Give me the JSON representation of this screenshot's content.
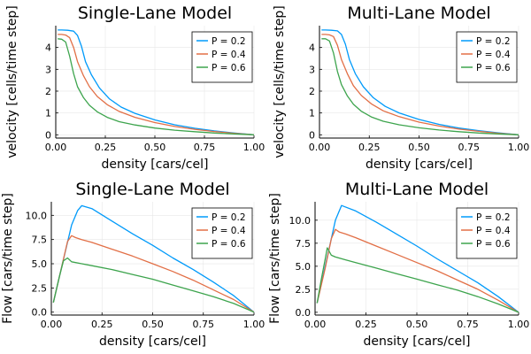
{
  "chart_data": [
    {
      "type": "line",
      "title": "Single-Lane Model",
      "xlabel": "density [cars/cel]",
      "ylabel": "velocity [cells/time step]",
      "xlim": [
        0,
        1
      ],
      "ylim": [
        -0.15,
        5.0
      ],
      "xticks": [
        0,
        0.25,
        0.5,
        0.75,
        1.0
      ],
      "xtick_labels": [
        "0.00",
        "0.25",
        "0.50",
        "0.75",
        "1.00"
      ],
      "yticks": [
        0,
        1,
        2,
        3,
        4
      ],
      "ytick_labels": [
        "0",
        "1",
        "2",
        "3",
        "4"
      ],
      "grid": true,
      "legend_position": "top-right",
      "series": [
        {
          "name": "P = 0.2",
          "color": "#009AFA",
          "x": [
            0.01,
            0.03,
            0.06,
            0.09,
            0.11,
            0.13,
            0.15,
            0.18,
            0.22,
            0.27,
            0.33,
            0.4,
            0.5,
            0.6,
            0.7,
            0.8,
            0.9,
            1.0
          ],
          "y": [
            4.8,
            4.8,
            4.79,
            4.75,
            4.55,
            4.05,
            3.35,
            2.75,
            2.15,
            1.65,
            1.27,
            0.98,
            0.68,
            0.46,
            0.3,
            0.18,
            0.08,
            0.0
          ]
        },
        {
          "name": "P = 0.4",
          "color": "#E26F46",
          "x": [
            0.01,
            0.03,
            0.05,
            0.07,
            0.09,
            0.11,
            0.14,
            0.17,
            0.21,
            0.26,
            0.32,
            0.4,
            0.5,
            0.6,
            0.7,
            0.8,
            0.9,
            1.0
          ],
          "y": [
            4.6,
            4.6,
            4.57,
            4.45,
            4.0,
            3.35,
            2.7,
            2.2,
            1.75,
            1.38,
            1.07,
            0.8,
            0.56,
            0.38,
            0.25,
            0.15,
            0.07,
            0.0
          ]
        },
        {
          "name": "P = 0.6",
          "color": "#3DA44D",
          "x": [
            0.01,
            0.03,
            0.05,
            0.07,
            0.09,
            0.11,
            0.14,
            0.17,
            0.21,
            0.26,
            0.32,
            0.4,
            0.5,
            0.6,
            0.7,
            0.8,
            0.9,
            1.0
          ],
          "y": [
            4.4,
            4.38,
            4.25,
            3.6,
            2.8,
            2.2,
            1.7,
            1.35,
            1.05,
            0.8,
            0.6,
            0.45,
            0.31,
            0.21,
            0.14,
            0.08,
            0.04,
            0.0
          ]
        }
      ]
    },
    {
      "type": "line",
      "title": "Multi-Lane Model",
      "xlabel": "density [cars/cel]",
      "ylabel": "velocity [cells/time step]",
      "xlim": [
        0,
        1
      ],
      "ylim": [
        -0.15,
        5.0
      ],
      "xticks": [
        0,
        0.25,
        0.5,
        0.75,
        1.0
      ],
      "xtick_labels": [
        "0.00",
        "0.25",
        "0.50",
        "0.75",
        "1.00"
      ],
      "yticks": [
        0,
        1,
        2,
        3,
        4
      ],
      "ytick_labels": [
        "0",
        "1",
        "2",
        "3",
        "4"
      ],
      "grid": true,
      "legend_position": "top-right",
      "series": [
        {
          "name": "P = 0.2",
          "color": "#009AFA",
          "x": [
            0.01,
            0.03,
            0.06,
            0.09,
            0.11,
            0.13,
            0.15,
            0.18,
            0.22,
            0.27,
            0.33,
            0.4,
            0.5,
            0.6,
            0.7,
            0.8,
            0.9,
            1.0
          ],
          "y": [
            4.8,
            4.8,
            4.79,
            4.76,
            4.6,
            4.15,
            3.45,
            2.8,
            2.2,
            1.7,
            1.3,
            1.0,
            0.7,
            0.48,
            0.31,
            0.19,
            0.09,
            0.0
          ]
        },
        {
          "name": "P = 0.4",
          "color": "#E26F46",
          "x": [
            0.01,
            0.03,
            0.05,
            0.07,
            0.09,
            0.11,
            0.14,
            0.17,
            0.21,
            0.26,
            0.32,
            0.4,
            0.5,
            0.6,
            0.7,
            0.8,
            0.9,
            1.0
          ],
          "y": [
            4.6,
            4.6,
            4.58,
            4.5,
            4.1,
            3.45,
            2.8,
            2.25,
            1.8,
            1.42,
            1.1,
            0.83,
            0.58,
            0.4,
            0.26,
            0.16,
            0.07,
            0.0
          ]
        },
        {
          "name": "P = 0.6",
          "color": "#3DA44D",
          "x": [
            0.01,
            0.03,
            0.05,
            0.07,
            0.09,
            0.11,
            0.14,
            0.17,
            0.21,
            0.26,
            0.32,
            0.4,
            0.5,
            0.6,
            0.7,
            0.8,
            0.9,
            1.0
          ],
          "y": [
            4.4,
            4.4,
            4.3,
            3.75,
            2.9,
            2.3,
            1.78,
            1.4,
            1.08,
            0.82,
            0.62,
            0.46,
            0.32,
            0.22,
            0.14,
            0.08,
            0.04,
            0.0
          ]
        }
      ]
    },
    {
      "type": "line",
      "title": "Single-Lane Model",
      "xlabel": "density [cars/cel]",
      "ylabel": "Flow [cars/time step]",
      "xlim": [
        0,
        1
      ],
      "ylim": [
        -0.3,
        11.4
      ],
      "xticks": [
        0,
        0.25,
        0.5,
        0.75,
        1.0
      ],
      "xtick_labels": [
        "0.00",
        "0.25",
        "0.50",
        "0.75",
        "1.00"
      ],
      "yticks": [
        0,
        2.5,
        5,
        7.5,
        10
      ],
      "ytick_labels": [
        "0.0",
        "2.5",
        "5.0",
        "7.5",
        "10.0"
      ],
      "grid": true,
      "legend_position": "top-right",
      "series": [
        {
          "name": "P = 0.2",
          "color": "#009AFA",
          "x": [
            0.01,
            0.05,
            0.1,
            0.13,
            0.15,
            0.2,
            0.3,
            0.4,
            0.5,
            0.6,
            0.7,
            0.8,
            0.9,
            1.0
          ],
          "y": [
            1.0,
            4.6,
            9.0,
            10.5,
            11.0,
            10.7,
            9.4,
            8.1,
            6.9,
            5.6,
            4.4,
            3.1,
            1.7,
            0.0
          ]
        },
        {
          "name": "P = 0.4",
          "color": "#E26F46",
          "x": [
            0.01,
            0.05,
            0.08,
            0.1,
            0.12,
            0.15,
            0.2,
            0.3,
            0.4,
            0.5,
            0.6,
            0.7,
            0.8,
            0.9,
            1.0
          ],
          "y": [
            1.0,
            4.6,
            7.3,
            7.9,
            7.7,
            7.5,
            7.2,
            6.5,
            5.8,
            5.0,
            4.2,
            3.3,
            2.3,
            1.3,
            0.0
          ]
        },
        {
          "name": "P = 0.6",
          "color": "#3DA44D",
          "x": [
            0.01,
            0.04,
            0.06,
            0.08,
            0.1,
            0.15,
            0.2,
            0.3,
            0.4,
            0.5,
            0.6,
            0.7,
            0.8,
            0.9,
            1.0
          ],
          "y": [
            1.0,
            3.7,
            5.3,
            5.6,
            5.2,
            5.0,
            4.8,
            4.4,
            3.9,
            3.4,
            2.8,
            2.2,
            1.6,
            0.9,
            0.0
          ]
        }
      ]
    },
    {
      "type": "line",
      "title": "Multi-Lane Model",
      "xlabel": "density [cars/cel]",
      "ylabel": "Flow [cars/time step]",
      "xlim": [
        0,
        1
      ],
      "ylim": [
        -0.3,
        12.0
      ],
      "xticks": [
        0,
        0.25,
        0.5,
        0.75,
        1.0
      ],
      "xtick_labels": [
        "0.00",
        "0.25",
        "0.50",
        "0.75",
        "1.00"
      ],
      "yticks": [
        0,
        2.5,
        5,
        7.5,
        10
      ],
      "ytick_labels": [
        "0.0",
        "2.5",
        "5.0",
        "7.5",
        "10.0"
      ],
      "grid": true,
      "legend_position": "top-right",
      "series": [
        {
          "name": "P = 0.2",
          "color": "#009AFA",
          "x": [
            0.01,
            0.05,
            0.1,
            0.13,
            0.2,
            0.3,
            0.4,
            0.5,
            0.6,
            0.7,
            0.8,
            0.9,
            1.0
          ],
          "y": [
            1.0,
            5.0,
            10.0,
            11.6,
            11.0,
            9.8,
            8.5,
            7.2,
            5.8,
            4.5,
            3.2,
            1.7,
            0.0
          ]
        },
        {
          "name": "P = 0.4",
          "color": "#E26F46",
          "x": [
            0.01,
            0.05,
            0.08,
            0.1,
            0.12,
            0.15,
            0.2,
            0.3,
            0.4,
            0.5,
            0.6,
            0.7,
            0.8,
            0.9,
            1.0
          ],
          "y": [
            1.0,
            4.8,
            8.0,
            9.0,
            8.7,
            8.5,
            8.1,
            7.2,
            6.3,
            5.4,
            4.5,
            3.5,
            2.5,
            1.3,
            0.0
          ]
        },
        {
          "name": "P = 0.6",
          "color": "#3DA44D",
          "x": [
            0.01,
            0.03,
            0.05,
            0.06,
            0.08,
            0.1,
            0.15,
            0.2,
            0.3,
            0.4,
            0.5,
            0.6,
            0.7,
            0.8,
            0.9,
            1.0
          ],
          "y": [
            1.0,
            3.5,
            5.8,
            7.0,
            6.2,
            6.0,
            5.7,
            5.4,
            4.8,
            4.2,
            3.6,
            3.0,
            2.4,
            1.7,
            0.9,
            0.0
          ]
        }
      ]
    }
  ]
}
